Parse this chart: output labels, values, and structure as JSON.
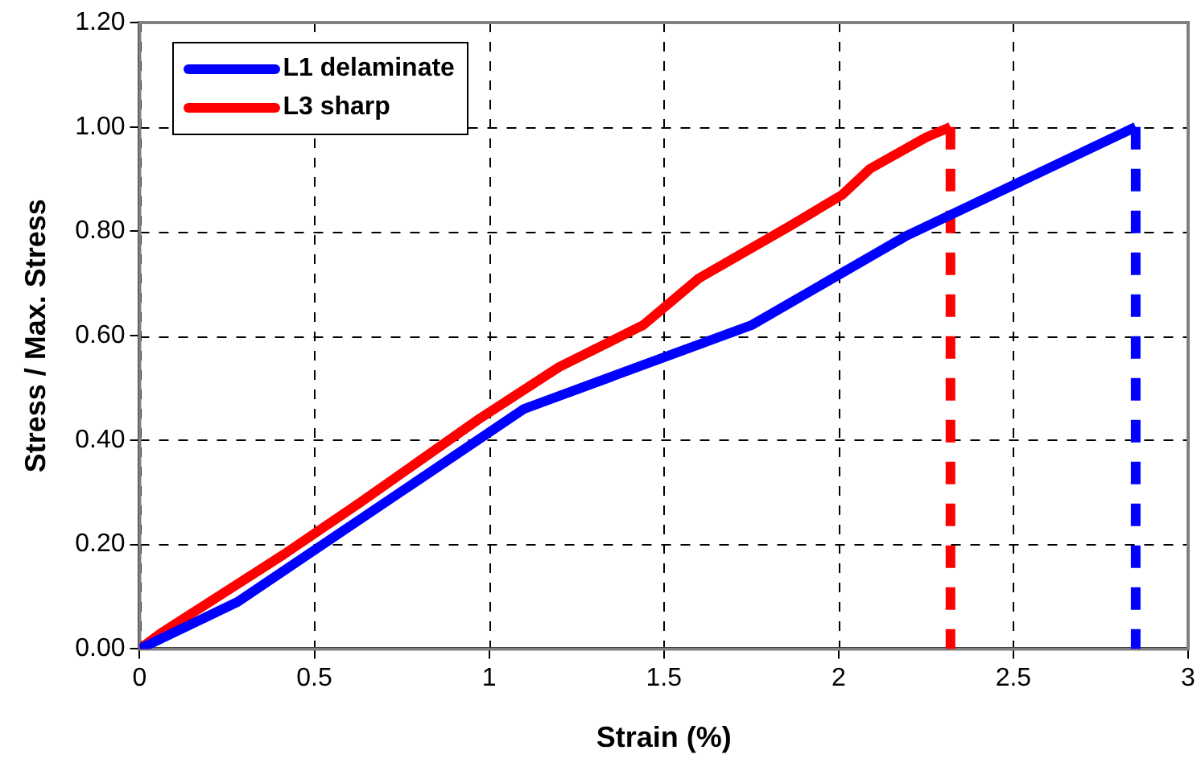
{
  "chart_data": {
    "type": "line",
    "xlabel": "Strain (%)",
    "ylabel": "Stress / Max. Stress",
    "xlim": [
      0,
      3
    ],
    "xticks": [
      0,
      0.5,
      1,
      1.5,
      2,
      2.5,
      3
    ],
    "ylim": [
      0,
      1.2
    ],
    "yticks": [
      {
        "value": 0,
        "label": "0.00"
      },
      {
        "value": 0.2,
        "label": "0.20"
      },
      {
        "value": 0.4,
        "label": "0.40"
      },
      {
        "value": 0.6,
        "label": "0.60"
      },
      {
        "value": 0.8,
        "label": "0.80"
      },
      {
        "value": 1,
        "label": "1.00"
      },
      {
        "value": 1.2,
        "label": "1.20"
      }
    ],
    "grid": true,
    "legend": "top left",
    "marker": "none",
    "series": [
      {
        "name": "L1 delaminate",
        "color": "#0000ff",
        "x": [
          0,
          0.28,
          1.1,
          1.75,
          2.19,
          2.85
        ],
        "values": [
          0,
          0.09,
          0.46,
          0.62,
          0.79,
          1.0
        ]
      },
      {
        "name": "L3 sharp",
        "color": "#ff0000",
        "x": [
          0,
          0.06,
          0.41,
          0.63,
          0.97,
          1.2,
          1.44,
          1.6,
          1.86,
          2.01,
          2.09,
          2.25,
          2.32
        ],
        "values": [
          0,
          0.03,
          0.18,
          0.28,
          0.44,
          0.54,
          0.62,
          0.71,
          0.81,
          0.87,
          0.92,
          0.98,
          1.0
        ]
      },
      {
        "color": "#0000ff",
        "x": [
          2.85,
          2.85
        ],
        "values": [
          1.0,
          0
        ],
        "line_style": "dashed"
      },
      {
        "color": "#ff0000",
        "x": [
          2.32,
          2.32
        ],
        "values": [
          1.0,
          0
        ],
        "line_style": "dashed"
      }
    ]
  }
}
